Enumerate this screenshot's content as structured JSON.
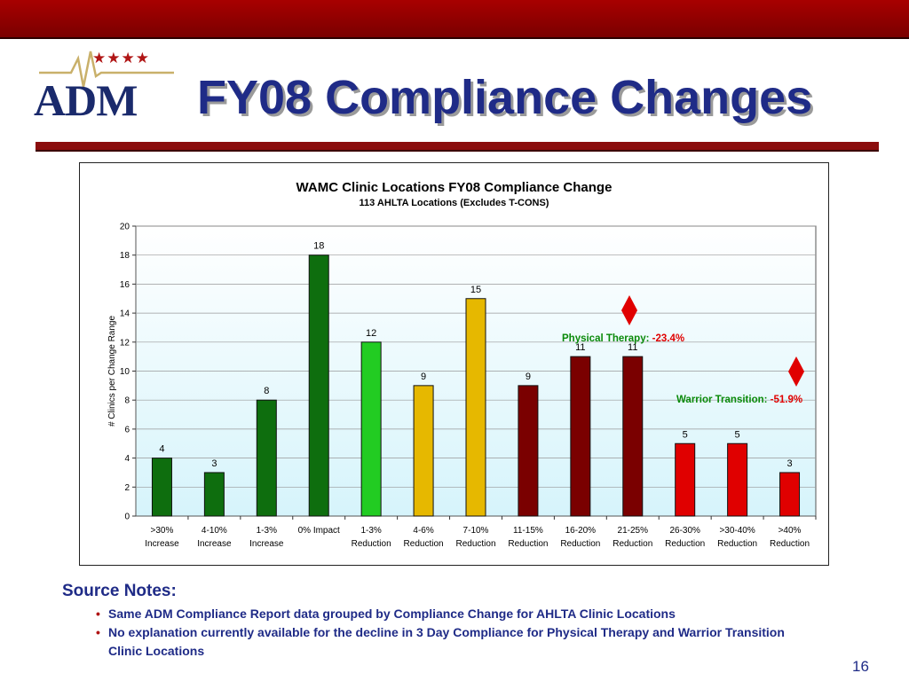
{
  "slide": {
    "title": "FY08 Compliance Changes",
    "logo_text": "ADM",
    "logo_stars": "★★★★",
    "page_number": "16"
  },
  "chart_data": {
    "type": "bar",
    "title": "WAMC Clinic Locations FY08 Compliance Change",
    "subtitle": "113 AHLTA Locations (Excludes T-CONS)",
    "xlabel": "",
    "ylabel": "# Clinics per Change Range",
    "ylim": [
      0,
      20
    ],
    "yticks": [
      0,
      2,
      4,
      6,
      8,
      10,
      12,
      14,
      16,
      18,
      20
    ],
    "categories": [
      [
        ">30%",
        "Increase"
      ],
      [
        "4-10%",
        "Increase"
      ],
      [
        "1-3%",
        "Increase"
      ],
      [
        "0%  Impact",
        ""
      ],
      [
        "1-3%",
        "Reduction"
      ],
      [
        "4-6%",
        "Reduction"
      ],
      [
        "7-10%",
        "Reduction"
      ],
      [
        "11-15%",
        "Reduction"
      ],
      [
        "16-20%",
        "Reduction"
      ],
      [
        "21-25%",
        "Reduction"
      ],
      [
        "26-30%",
        "Reduction"
      ],
      [
        ">30-40%",
        "Reduction"
      ],
      [
        ">40%",
        "Reduction"
      ]
    ],
    "values": [
      4,
      3,
      8,
      18,
      12,
      9,
      15,
      9,
      11,
      11,
      5,
      5,
      3
    ],
    "bar_colors": [
      "#0e6e0e",
      "#0e6e0e",
      "#0e6e0e",
      "#0e6e0e",
      "#22cc22",
      "#e6b800",
      "#e6b800",
      "#7a0000",
      "#7a0000",
      "#7a0000",
      "#e00000",
      "#e00000",
      "#e00000"
    ],
    "grid": true,
    "annotations": [
      {
        "label": "Physical Therapy:",
        "value": "-23.4%",
        "label_color": "#0a8a0a",
        "value_color": "#e00000"
      },
      {
        "label": "Warrior Transition:",
        "value": "-51.9%",
        "label_color": "#0a8a0a",
        "value_color": "#e00000"
      }
    ],
    "marker_color": "#e00000"
  },
  "notes": {
    "heading": "Source Notes:",
    "bullet": "•",
    "items": [
      "Same ADM Compliance Report data grouped by Compliance Change for AHLTA Clinic Locations",
      "No explanation currently available for the decline in 3 Day Compliance for Physical Therapy and Warrior Transition Clinic Locations"
    ]
  }
}
